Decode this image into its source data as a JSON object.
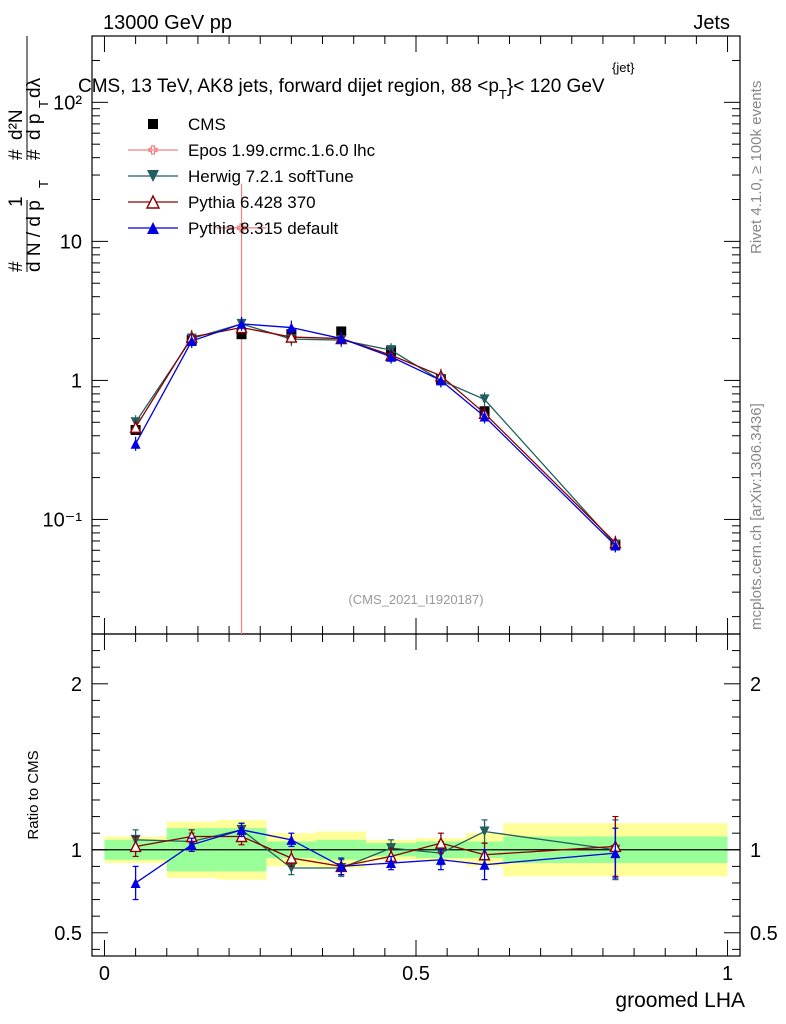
{
  "header": {
    "left": "13000 GeV pp",
    "right": "Jets"
  },
  "side_labels": {
    "rivet": "Rivet 4.1.0, ≥ 100k events",
    "mcplots": "mcplots.cern.ch [arXiv:1306.3436]"
  },
  "chart_data": {
    "type": "line",
    "title": "CMS, 13 TeV, AK8 jets, forward dijet region, 88 <p",
    "title_super": "{jet}",
    "title_sub": "T",
    "title_end": "}< 120 GeV",
    "xlabel": "groomed LHA",
    "ylabel_top": "1/dN/dp_T  d²N/dp_T dλ",
    "ylabel_bottom": "Ratio to CMS",
    "watermark": "(CMS_2021_I1920187)",
    "xlim": [
      -0.02,
      1.02
    ],
    "ylim_top": [
      0.015,
      300
    ],
    "ylim_bottom": [
      0.36,
      2.3
    ],
    "x_ticks": [
      "0",
      "0.5",
      "1"
    ],
    "x_tick_values": [
      0,
      0.5,
      1
    ],
    "y_ticks_top": [
      "10⁻¹",
      "1",
      "10",
      "10²"
    ],
    "y_tick_values_top": [
      0.1,
      1,
      10,
      100
    ],
    "y_ticks_bottom": [
      "0.5",
      "1",
      "2"
    ],
    "y_tick_values_bottom": [
      0.5,
      1,
      2
    ],
    "bins": [
      {
        "lo": 0.0,
        "hi": 0.1
      },
      {
        "lo": 0.1,
        "hi": 0.18
      },
      {
        "lo": 0.18,
        "hi": 0.26
      },
      {
        "lo": 0.26,
        "hi": 0.34
      },
      {
        "lo": 0.34,
        "hi": 0.42
      },
      {
        "lo": 0.42,
        "hi": 0.5
      },
      {
        "lo": 0.5,
        "hi": 0.58
      },
      {
        "lo": 0.58,
        "hi": 0.64
      },
      {
        "lo": 0.64,
        "hi": 1.0
      }
    ],
    "x": [
      0.05,
      0.14,
      0.22,
      0.3,
      0.38,
      0.46,
      0.54,
      0.61,
      0.82
    ],
    "data": {
      "name": "CMS",
      "values": [
        0.44,
        1.95,
        2.15,
        2.15,
        2.25,
        1.62,
        1.02,
        0.6,
        0.066
      ]
    },
    "bands_inner": [
      1.06,
      1.13,
      1.13,
      1.05,
      1.06,
      1.04,
      1.05,
      1.05,
      1.08
    ],
    "bands_outer": [
      1.08,
      1.17,
      1.18,
      1.1,
      1.11,
      1.06,
      1.07,
      1.1,
      1.16
    ],
    "series": [
      {
        "name": "Epos 1.99.crmc.1.6.0 lhc",
        "color": "#f08080",
        "marker": "cross",
        "x": [
          0.22
        ],
        "values": [
          12.5
        ],
        "ratio": [],
        "ratio_err": []
      },
      {
        "name": "Herwig 7.2.1 softTune",
        "color": "#1f5f5f",
        "marker": "tri-down",
        "values": [
          0.5,
          2.0,
          2.55,
          1.98,
          1.95,
          1.65,
          1.0,
          0.73,
          0.066
        ],
        "ratio": [
          1.06,
          1.05,
          1.12,
          0.89,
          0.89,
          1.01,
          0.98,
          1.11,
          1.0
        ],
        "ratio_err": [
          0.06,
          0.05,
          0.04,
          0.04,
          0.05,
          0.05,
          0.07,
          0.07,
          0.18
        ]
      },
      {
        "name": "Pythia 6.428 370",
        "color": "#8b0000",
        "marker": "tri-open",
        "values": [
          0.46,
          2.05,
          2.4,
          2.05,
          2.0,
          1.52,
          1.08,
          0.58,
          0.068
        ],
        "ratio": [
          1.02,
          1.08,
          1.08,
          0.95,
          0.9,
          0.96,
          1.04,
          0.97,
          1.02
        ],
        "ratio_err": [
          0.06,
          0.04,
          0.05,
          0.05,
          0.05,
          0.05,
          0.06,
          0.07,
          0.18
        ]
      },
      {
        "name": "Pythia 8.315 default",
        "color": "#0000e0",
        "marker": "tri-up",
        "values": [
          0.35,
          1.92,
          2.55,
          2.4,
          2.0,
          1.48,
          1.0,
          0.55,
          0.065
        ],
        "ratio": [
          0.8,
          1.03,
          1.12,
          1.06,
          0.9,
          0.92,
          0.94,
          0.91,
          0.98
        ],
        "ratio_err": [
          0.1,
          0.04,
          0.04,
          0.04,
          0.05,
          0.04,
          0.06,
          0.09,
          0.15
        ]
      }
    ],
    "epos_vertical_x": 0.22
  }
}
